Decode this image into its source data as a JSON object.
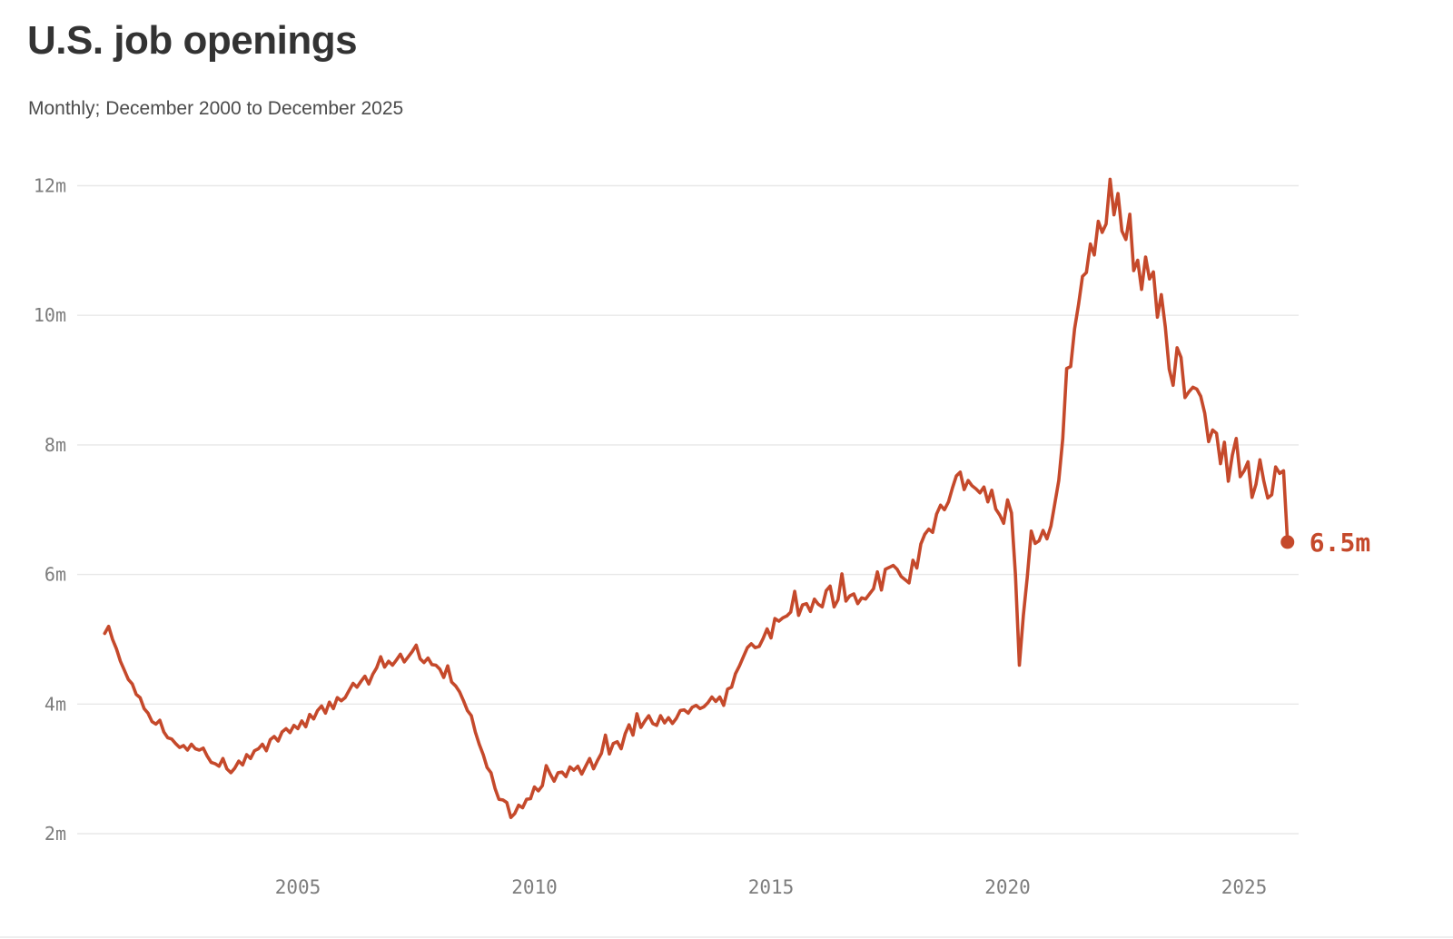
{
  "header": {
    "title": "U.S. job openings",
    "subtitle": "Monthly; December 2000 to December 2025"
  },
  "chart_data": {
    "type": "line",
    "title": "U.S. job openings",
    "subtitle": "Monthly; December 2000 to December 2025",
    "series_name": "U.S. job openings (millions)",
    "x_start": "2000-12",
    "x_end": "2025-12",
    "x_interval": "monthly",
    "y_unit": "millions",
    "ylim": [
      2,
      12
    ],
    "grid": true,
    "y_ticks": [
      {
        "value": 2,
        "label": "2m"
      },
      {
        "value": 4,
        "label": "4m"
      },
      {
        "value": 6,
        "label": "6m"
      },
      {
        "value": 8,
        "label": "8m"
      },
      {
        "value": 10,
        "label": "10m"
      },
      {
        "value": 12,
        "label": "12m"
      }
    ],
    "x_ticks": [
      {
        "value": 2005,
        "label": "2005"
      },
      {
        "value": 2010,
        "label": "2010"
      },
      {
        "value": 2015,
        "label": "2015"
      },
      {
        "value": 2020,
        "label": "2020"
      },
      {
        "value": 2025,
        "label": "2025"
      }
    ],
    "line_color": "#c5492b",
    "grid_color": "#e8e8e8",
    "end_point": {
      "label": "6.5m",
      "value": 6.5,
      "date": "2025-12"
    },
    "values": [
      5.09,
      5.2,
      5.0,
      4.85,
      4.66,
      4.52,
      4.38,
      4.31,
      4.15,
      4.1,
      3.93,
      3.86,
      3.73,
      3.69,
      3.75,
      3.57,
      3.48,
      3.46,
      3.39,
      3.33,
      3.36,
      3.29,
      3.38,
      3.31,
      3.29,
      3.32,
      3.2,
      3.1,
      3.08,
      3.04,
      3.16,
      3.0,
      2.94,
      3.01,
      3.12,
      3.06,
      3.22,
      3.16,
      3.28,
      3.31,
      3.38,
      3.28,
      3.45,
      3.5,
      3.43,
      3.57,
      3.62,
      3.56,
      3.67,
      3.62,
      3.74,
      3.65,
      3.84,
      3.77,
      3.9,
      3.97,
      3.86,
      4.03,
      3.93,
      4.1,
      4.05,
      4.1,
      4.21,
      4.32,
      4.26,
      4.35,
      4.43,
      4.31,
      4.46,
      4.56,
      4.73,
      4.57,
      4.66,
      4.6,
      4.68,
      4.77,
      4.65,
      4.73,
      4.81,
      4.91,
      4.7,
      4.64,
      4.71,
      4.61,
      4.6,
      4.54,
      4.41,
      4.59,
      4.34,
      4.28,
      4.19,
      4.05,
      3.9,
      3.82,
      3.57,
      3.38,
      3.22,
      3.02,
      2.94,
      2.7,
      2.53,
      2.52,
      2.48,
      2.25,
      2.31,
      2.44,
      2.4,
      2.53,
      2.54,
      2.72,
      2.66,
      2.74,
      3.05,
      2.92,
      2.81,
      2.94,
      2.95,
      2.88,
      3.03,
      2.98,
      3.04,
      2.92,
      3.04,
      3.16,
      3.0,
      3.13,
      3.24,
      3.52,
      3.23,
      3.39,
      3.42,
      3.31,
      3.54,
      3.68,
      3.52,
      3.85,
      3.64,
      3.74,
      3.82,
      3.7,
      3.67,
      3.82,
      3.71,
      3.79,
      3.7,
      3.78,
      3.9,
      3.91,
      3.86,
      3.95,
      3.98,
      3.93,
      3.96,
      4.02,
      4.11,
      4.04,
      4.11,
      3.98,
      4.23,
      4.26,
      4.47,
      4.59,
      4.73,
      4.87,
      4.93,
      4.87,
      4.89,
      5.01,
      5.16,
      5.02,
      5.32,
      5.28,
      5.33,
      5.36,
      5.42,
      5.74,
      5.37,
      5.53,
      5.55,
      5.43,
      5.62,
      5.54,
      5.5,
      5.75,
      5.82,
      5.5,
      5.61,
      6.01,
      5.59,
      5.67,
      5.7,
      5.55,
      5.64,
      5.62,
      5.7,
      5.78,
      6.04,
      5.76,
      6.08,
      6.11,
      6.14,
      6.08,
      5.97,
      5.92,
      5.87,
      6.22,
      6.1,
      6.47,
      6.62,
      6.7,
      6.65,
      6.93,
      7.07,
      7.0,
      7.12,
      7.33,
      7.52,
      7.58,
      7.31,
      7.45,
      7.37,
      7.32,
      7.26,
      7.35,
      7.12,
      7.3,
      7.01,
      6.92,
      6.79,
      7.15,
      6.95,
      5.99,
      4.6,
      5.37,
      5.96,
      6.67,
      6.48,
      6.52,
      6.68,
      6.55,
      6.75,
      7.1,
      7.45,
      8.1,
      9.18,
      9.21,
      9.79,
      10.17,
      10.6,
      10.66,
      11.1,
      10.93,
      11.45,
      11.28,
      11.41,
      12.1,
      11.55,
      11.88,
      11.3,
      11.17,
      11.56,
      10.69,
      10.85,
      10.4,
      10.9,
      10.56,
      10.67,
      9.97,
      10.32,
      9.82,
      9.17,
      8.92,
      9.5,
      9.35,
      8.73,
      8.82,
      8.89,
      8.86,
      8.75,
      8.49,
      8.05,
      8.23,
      8.18,
      7.71,
      8.04,
      7.44,
      7.84,
      8.1,
      7.51,
      7.6,
      7.74,
      7.19,
      7.39,
      7.77,
      7.44,
      7.18,
      7.23,
      7.66,
      7.56,
      7.6,
      6.5
    ]
  }
}
